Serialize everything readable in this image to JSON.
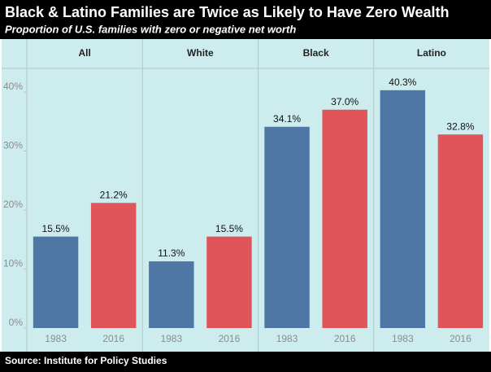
{
  "chart_data": {
    "type": "bar",
    "title": "Black & Latino Families are Twice as Likely to Have Zero Wealth",
    "subtitle": "Proportion of U.S. families with zero or negative net worth",
    "source": "Source: Institute for Policy Studies",
    "colors": [
      "#4e77a6",
      "#e0555a"
    ],
    "panels": [
      {
        "name": "All",
        "categories": [
          "1983",
          "2016"
        ],
        "values": [
          15.5,
          21.2
        ],
        "value_labels": [
          "15.5%",
          "21.2%"
        ]
      },
      {
        "name": "White",
        "categories": [
          "1983",
          "2016"
        ],
        "values": [
          11.3,
          15.5
        ],
        "value_labels": [
          "11.3%",
          "15.5%"
        ]
      },
      {
        "name": "Black",
        "categories": [
          "1983",
          "2016"
        ],
        "values": [
          34.1,
          37.0
        ],
        "value_labels": [
          "34.1%",
          "37.0%"
        ]
      },
      {
        "name": "Latino",
        "categories": [
          "1983",
          "2016"
        ],
        "values": [
          40.3,
          32.8
        ],
        "value_labels": [
          "40.3%",
          "32.8%"
        ]
      }
    ],
    "ylim": [
      0,
      44
    ],
    "yticks": [
      {
        "value": 0,
        "label": "0%"
      },
      {
        "value": 10,
        "label": "10%"
      },
      {
        "value": 20,
        "label": "20%"
      },
      {
        "value": 30,
        "label": "30%"
      },
      {
        "value": 40,
        "label": "40%"
      }
    ],
    "grid": false
  }
}
